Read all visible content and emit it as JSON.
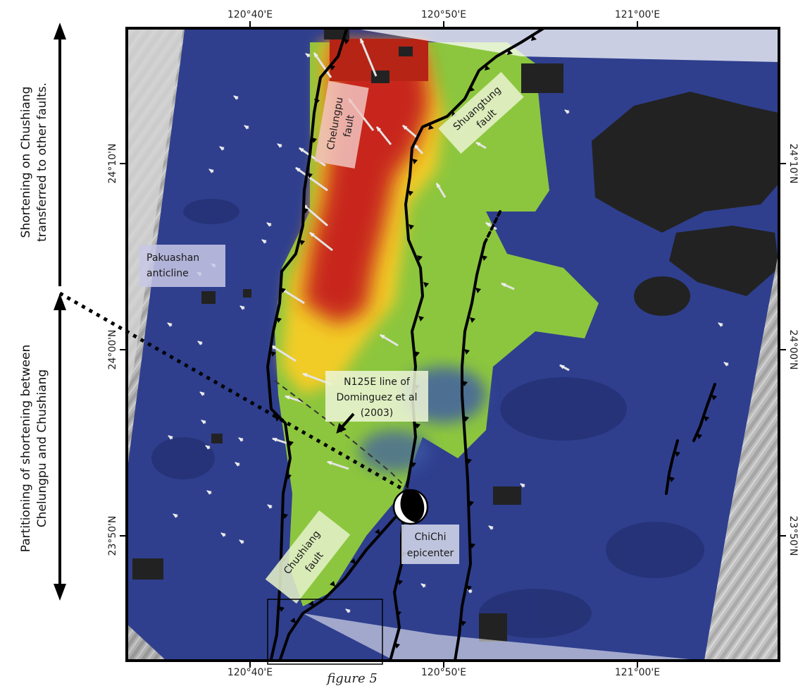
{
  "map": {
    "lon_ticks_top": [
      "120°40'E",
      "120°50'E",
      "121°00'E"
    ],
    "lon_ticks_bottom": [
      "120°40'E",
      "120°50'E",
      "121°00'E"
    ],
    "lat_ticks_left": [
      "24°10'N",
      "24°00'N",
      "23°50'N"
    ],
    "lat_ticks_right": [
      "24°10'N",
      "24°00'N",
      "23°50'N"
    ],
    "labels": {
      "chelungpu_line1": "Chelungpu",
      "chelungpu_line2": "fault",
      "shuangtung_line1": "Shuangtung",
      "shuangtung_line2": "fault",
      "pakuashan_line1": "Pakuashan",
      "pakuashan_line2": "anticline",
      "n125e_line1": "N125E line of",
      "n125e_line2": "Dominguez et al",
      "n125e_line3": "(2003)",
      "chushiang_line1": "Chushiang",
      "chushiang_line2": "fault",
      "chichi_line1": "ChiChi",
      "chichi_line2": "epicenter",
      "figure_ref": "figure 5"
    },
    "side_annotations": {
      "top_line1": "Shortening on Chushiang",
      "top_line2": "transferred to other faults.",
      "bottom_line1": "Partitioning of shortening between",
      "bottom_line2": "Chelungpu and Chushiang"
    },
    "colors": {
      "uplift_high": "#c8261a",
      "uplift_mid": "#f2cc25",
      "uplift_low": "#8cc63e",
      "background_low": "#2f3f8e",
      "no_data": "#222222",
      "shaded_relief": "#b9b9b9",
      "fault_line": "#000000",
      "arrows": "#e8e8e8"
    },
    "icons": [
      "fault-thrust-teeth",
      "displacement-arrow",
      "focal-mechanism-beachball"
    ]
  }
}
